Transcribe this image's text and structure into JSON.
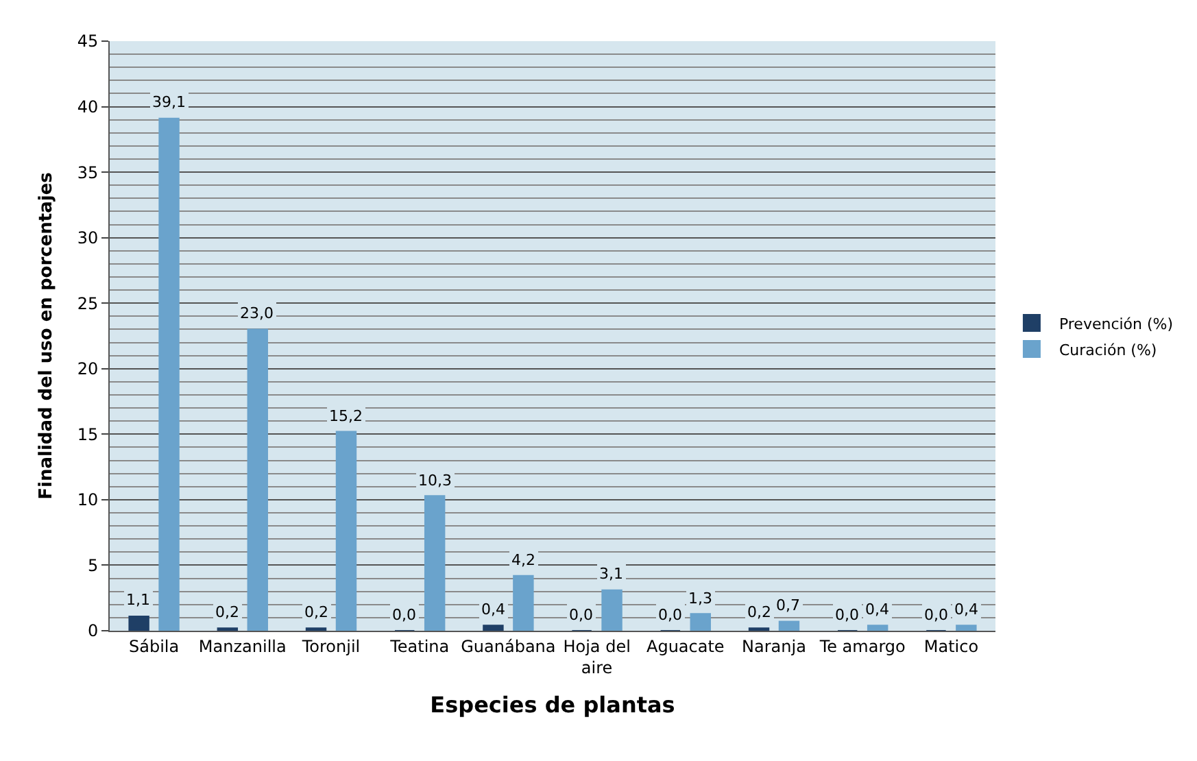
{
  "chart_data": {
    "type": "bar",
    "xlabel": "Especies de plantas",
    "ylabel": "Finalidad del uso en porcentajes",
    "categories": [
      "Sábila",
      "Manzanilla",
      "Toronjil",
      "Teatina",
      "Guanábana",
      "Hoja del aire",
      "Aguacate",
      "Naranja",
      "Te amargo",
      "Matico"
    ],
    "series": [
      {
        "name": "Prevención (%)",
        "color": "#1f3f66",
        "values": [
          1.1,
          0.2,
          0.2,
          0.0,
          0.4,
          0.0,
          0.0,
          0.2,
          0.0,
          0.0
        ],
        "value_labels": [
          "1,1",
          "0,2",
          "0,2",
          "0,0",
          "0,4",
          "0,0",
          "0,0",
          "0,2",
          "0,0",
          "0,0"
        ]
      },
      {
        "name": "Curación (%)",
        "color": "#6aa3cc",
        "values": [
          39.1,
          23.0,
          15.2,
          10.3,
          4.2,
          3.1,
          1.3,
          0.7,
          0.4,
          0.4
        ],
        "value_labels": [
          "39,1",
          "23,0",
          "15,2",
          "10,3",
          "4,2",
          "3,1",
          "1,3",
          "0,7",
          "0,4",
          "0,4"
        ]
      }
    ],
    "ylim": [
      0,
      45
    ],
    "yticks": [
      0,
      5,
      10,
      15,
      20,
      25,
      30,
      35,
      40,
      45
    ],
    "grid": "y",
    "legend": "right"
  }
}
